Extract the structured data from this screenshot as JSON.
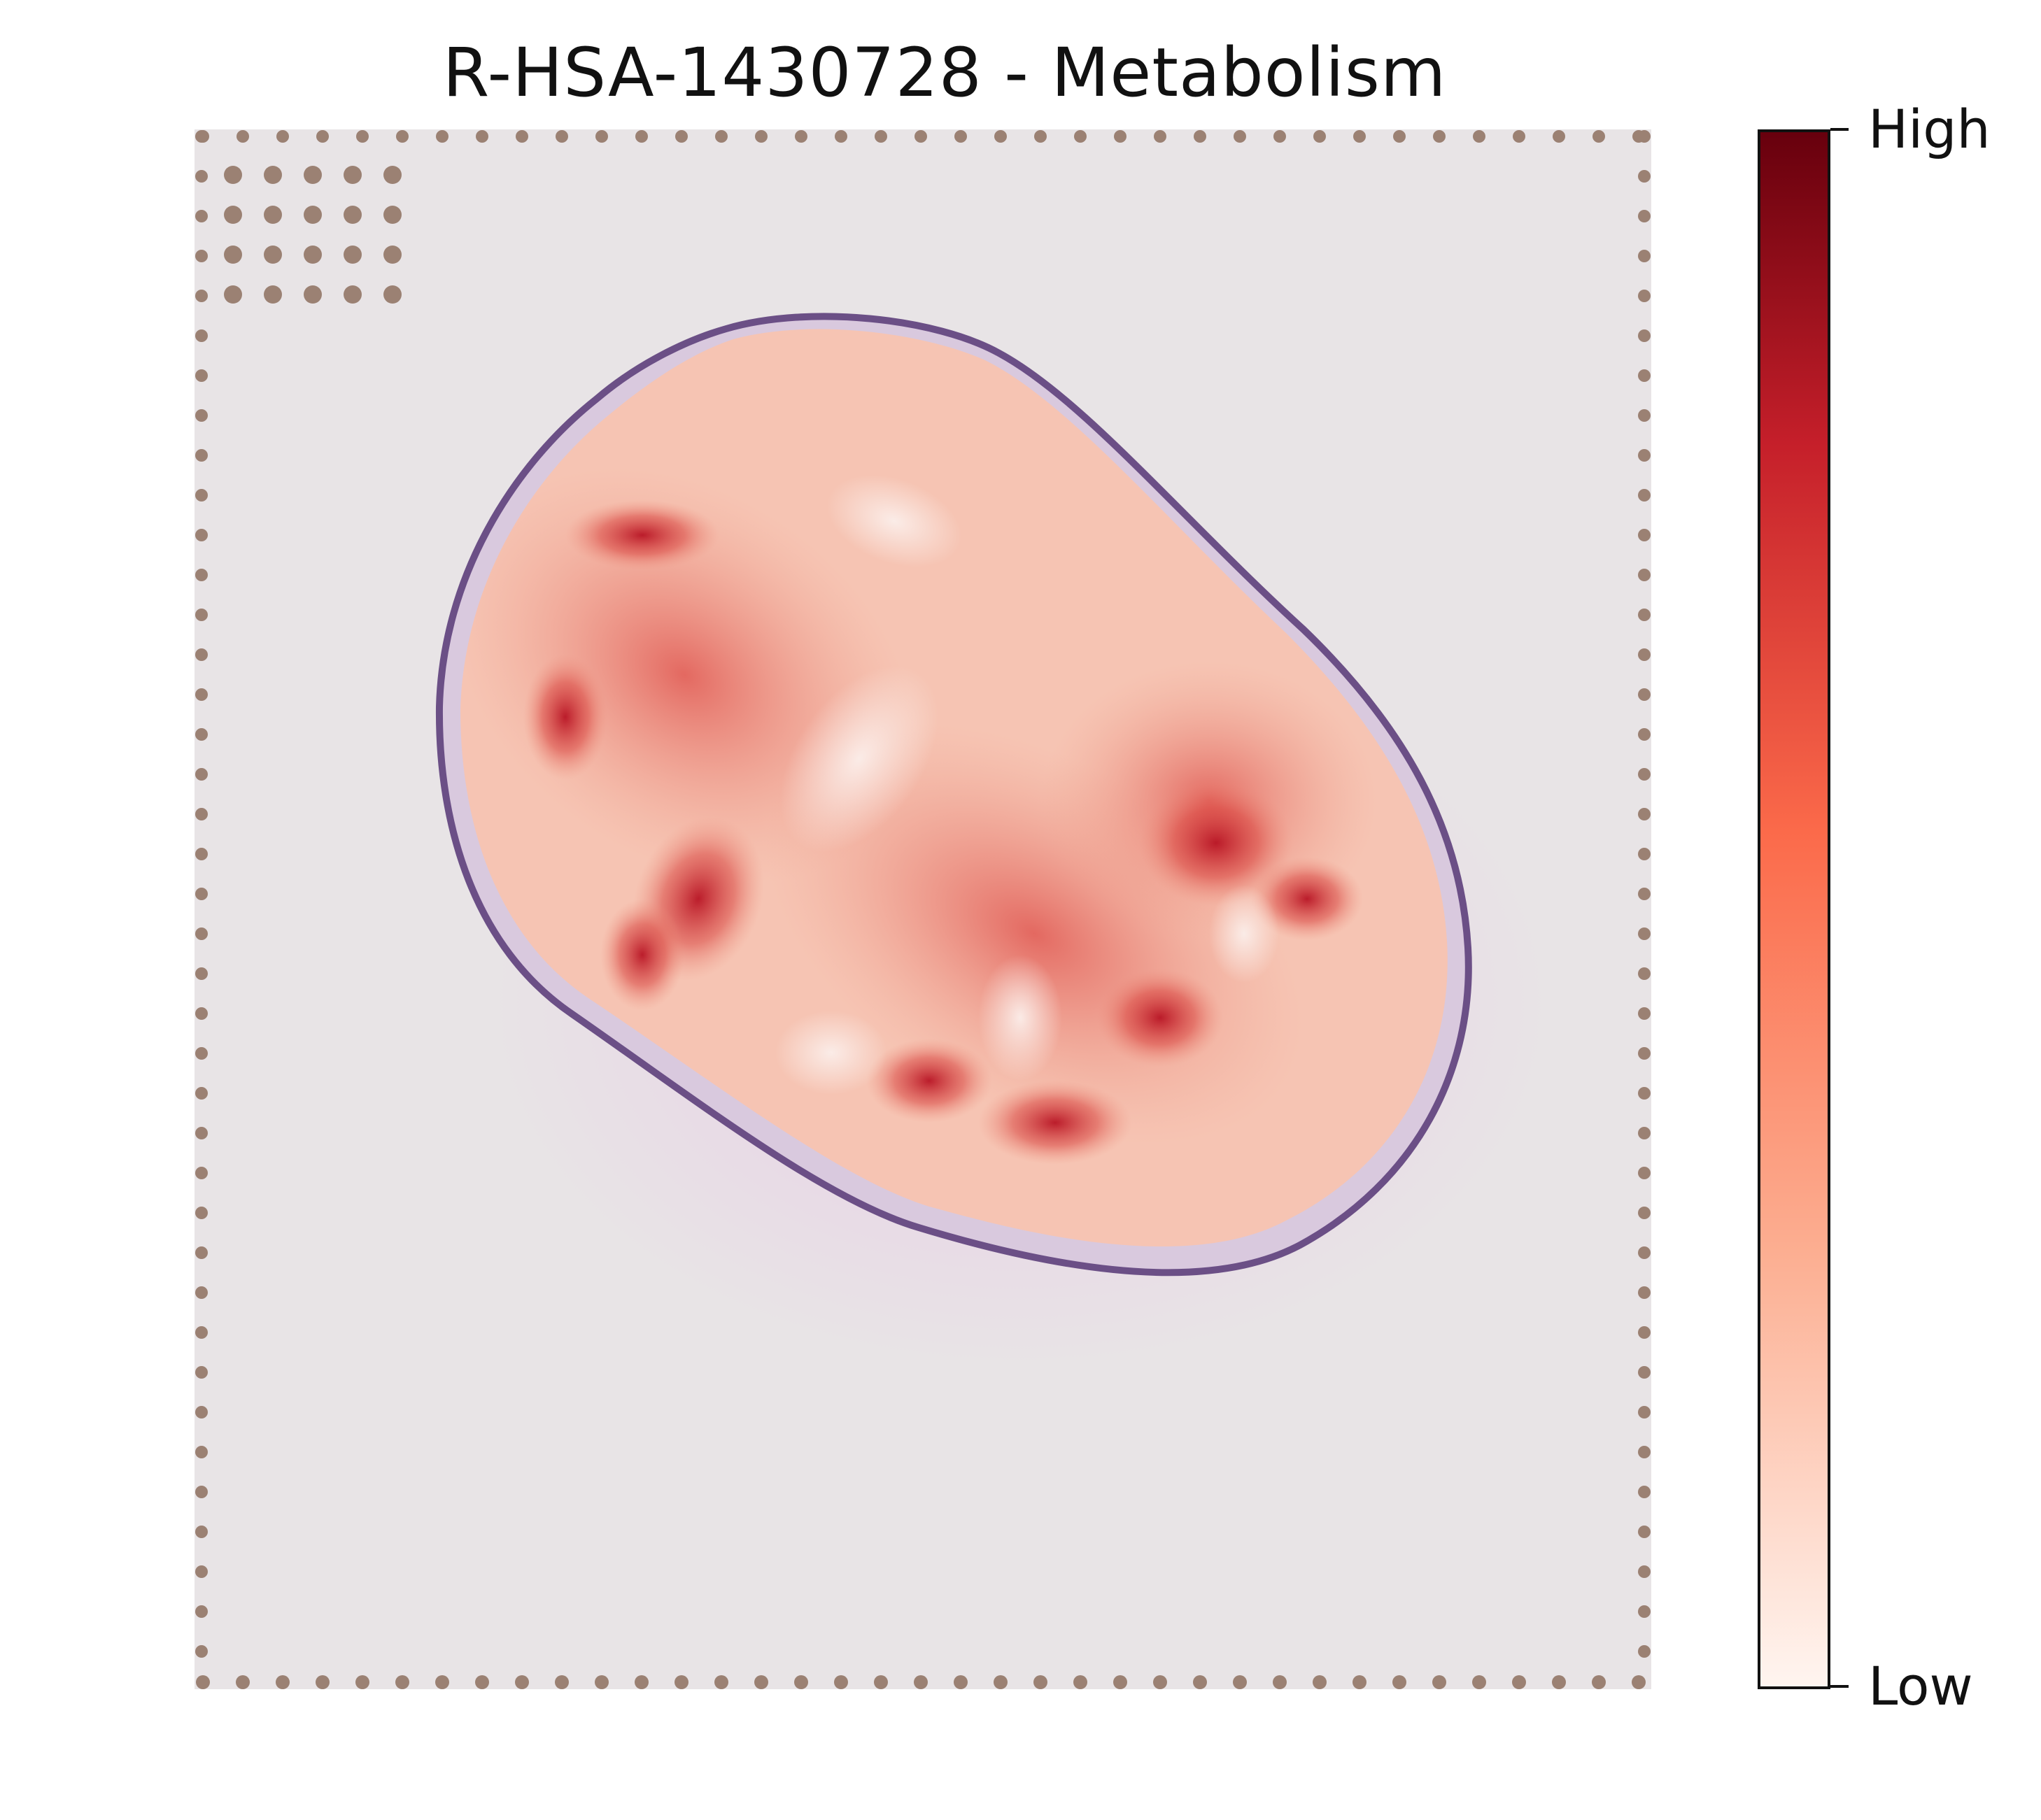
{
  "figure": {
    "title": "R-HSA-1430728 - Metabolism"
  },
  "colorbar": {
    "label_high": "High",
    "label_low": "Low",
    "color_high": "#67000d",
    "color_mid": "#fb6a4a",
    "color_low": "#fff5f0"
  },
  "image": {
    "background_color": "#e8e4e6",
    "fiducial_color": "#9b8173",
    "tissue_outline_color": "#6b4f86",
    "heat_colors": [
      "#f6c4b3",
      "#ee8f7c",
      "#dd4a45",
      "#c21f2a"
    ]
  }
}
